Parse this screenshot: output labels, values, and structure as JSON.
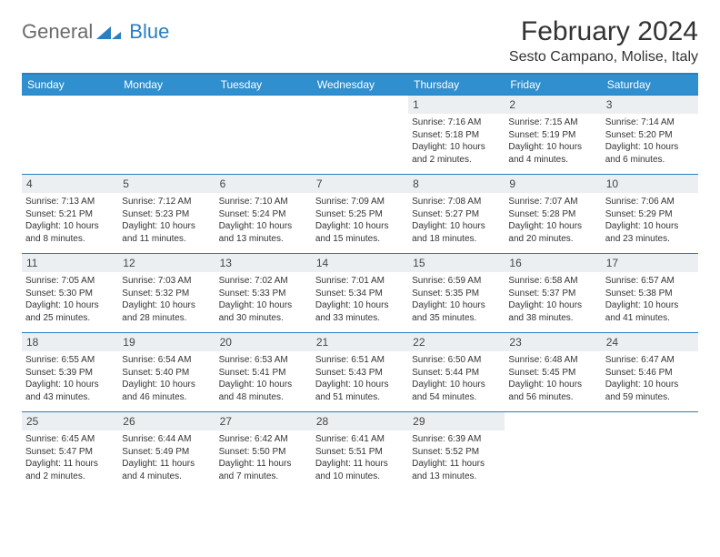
{
  "brand": {
    "text1": "General",
    "text2": "Blue"
  },
  "title": "February 2024",
  "location": "Sesto Campano, Molise, Italy",
  "colors": {
    "header_bar": "#2f8fcf",
    "border": "#2a7fbf",
    "daynum_bg": "#eceff1",
    "text": "#333333",
    "logo_gray": "#6b6b6b",
    "logo_blue": "#2a7fbf"
  },
  "weekdays": [
    "Sunday",
    "Monday",
    "Tuesday",
    "Wednesday",
    "Thursday",
    "Friday",
    "Saturday"
  ],
  "weeks": [
    [
      {
        "n": "",
        "sr": "",
        "ss": "",
        "dl": ""
      },
      {
        "n": "",
        "sr": "",
        "ss": "",
        "dl": ""
      },
      {
        "n": "",
        "sr": "",
        "ss": "",
        "dl": ""
      },
      {
        "n": "",
        "sr": "",
        "ss": "",
        "dl": ""
      },
      {
        "n": "1",
        "sr": "Sunrise: 7:16 AM",
        "ss": "Sunset: 5:18 PM",
        "dl": "Daylight: 10 hours and 2 minutes."
      },
      {
        "n": "2",
        "sr": "Sunrise: 7:15 AM",
        "ss": "Sunset: 5:19 PM",
        "dl": "Daylight: 10 hours and 4 minutes."
      },
      {
        "n": "3",
        "sr": "Sunrise: 7:14 AM",
        "ss": "Sunset: 5:20 PM",
        "dl": "Daylight: 10 hours and 6 minutes."
      }
    ],
    [
      {
        "n": "4",
        "sr": "Sunrise: 7:13 AM",
        "ss": "Sunset: 5:21 PM",
        "dl": "Daylight: 10 hours and 8 minutes."
      },
      {
        "n": "5",
        "sr": "Sunrise: 7:12 AM",
        "ss": "Sunset: 5:23 PM",
        "dl": "Daylight: 10 hours and 11 minutes."
      },
      {
        "n": "6",
        "sr": "Sunrise: 7:10 AM",
        "ss": "Sunset: 5:24 PM",
        "dl": "Daylight: 10 hours and 13 minutes."
      },
      {
        "n": "7",
        "sr": "Sunrise: 7:09 AM",
        "ss": "Sunset: 5:25 PM",
        "dl": "Daylight: 10 hours and 15 minutes."
      },
      {
        "n": "8",
        "sr": "Sunrise: 7:08 AM",
        "ss": "Sunset: 5:27 PM",
        "dl": "Daylight: 10 hours and 18 minutes."
      },
      {
        "n": "9",
        "sr": "Sunrise: 7:07 AM",
        "ss": "Sunset: 5:28 PM",
        "dl": "Daylight: 10 hours and 20 minutes."
      },
      {
        "n": "10",
        "sr": "Sunrise: 7:06 AM",
        "ss": "Sunset: 5:29 PM",
        "dl": "Daylight: 10 hours and 23 minutes."
      }
    ],
    [
      {
        "n": "11",
        "sr": "Sunrise: 7:05 AM",
        "ss": "Sunset: 5:30 PM",
        "dl": "Daylight: 10 hours and 25 minutes."
      },
      {
        "n": "12",
        "sr": "Sunrise: 7:03 AM",
        "ss": "Sunset: 5:32 PM",
        "dl": "Daylight: 10 hours and 28 minutes."
      },
      {
        "n": "13",
        "sr": "Sunrise: 7:02 AM",
        "ss": "Sunset: 5:33 PM",
        "dl": "Daylight: 10 hours and 30 minutes."
      },
      {
        "n": "14",
        "sr": "Sunrise: 7:01 AM",
        "ss": "Sunset: 5:34 PM",
        "dl": "Daylight: 10 hours and 33 minutes."
      },
      {
        "n": "15",
        "sr": "Sunrise: 6:59 AM",
        "ss": "Sunset: 5:35 PM",
        "dl": "Daylight: 10 hours and 35 minutes."
      },
      {
        "n": "16",
        "sr": "Sunrise: 6:58 AM",
        "ss": "Sunset: 5:37 PM",
        "dl": "Daylight: 10 hours and 38 minutes."
      },
      {
        "n": "17",
        "sr": "Sunrise: 6:57 AM",
        "ss": "Sunset: 5:38 PM",
        "dl": "Daylight: 10 hours and 41 minutes."
      }
    ],
    [
      {
        "n": "18",
        "sr": "Sunrise: 6:55 AM",
        "ss": "Sunset: 5:39 PM",
        "dl": "Daylight: 10 hours and 43 minutes."
      },
      {
        "n": "19",
        "sr": "Sunrise: 6:54 AM",
        "ss": "Sunset: 5:40 PM",
        "dl": "Daylight: 10 hours and 46 minutes."
      },
      {
        "n": "20",
        "sr": "Sunrise: 6:53 AM",
        "ss": "Sunset: 5:41 PM",
        "dl": "Daylight: 10 hours and 48 minutes."
      },
      {
        "n": "21",
        "sr": "Sunrise: 6:51 AM",
        "ss": "Sunset: 5:43 PM",
        "dl": "Daylight: 10 hours and 51 minutes."
      },
      {
        "n": "22",
        "sr": "Sunrise: 6:50 AM",
        "ss": "Sunset: 5:44 PM",
        "dl": "Daylight: 10 hours and 54 minutes."
      },
      {
        "n": "23",
        "sr": "Sunrise: 6:48 AM",
        "ss": "Sunset: 5:45 PM",
        "dl": "Daylight: 10 hours and 56 minutes."
      },
      {
        "n": "24",
        "sr": "Sunrise: 6:47 AM",
        "ss": "Sunset: 5:46 PM",
        "dl": "Daylight: 10 hours and 59 minutes."
      }
    ],
    [
      {
        "n": "25",
        "sr": "Sunrise: 6:45 AM",
        "ss": "Sunset: 5:47 PM",
        "dl": "Daylight: 11 hours and 2 minutes."
      },
      {
        "n": "26",
        "sr": "Sunrise: 6:44 AM",
        "ss": "Sunset: 5:49 PM",
        "dl": "Daylight: 11 hours and 4 minutes."
      },
      {
        "n": "27",
        "sr": "Sunrise: 6:42 AM",
        "ss": "Sunset: 5:50 PM",
        "dl": "Daylight: 11 hours and 7 minutes."
      },
      {
        "n": "28",
        "sr": "Sunrise: 6:41 AM",
        "ss": "Sunset: 5:51 PM",
        "dl": "Daylight: 11 hours and 10 minutes."
      },
      {
        "n": "29",
        "sr": "Sunrise: 6:39 AM",
        "ss": "Sunset: 5:52 PM",
        "dl": "Daylight: 11 hours and 13 minutes."
      },
      {
        "n": "",
        "sr": "",
        "ss": "",
        "dl": ""
      },
      {
        "n": "",
        "sr": "",
        "ss": "",
        "dl": ""
      }
    ]
  ]
}
